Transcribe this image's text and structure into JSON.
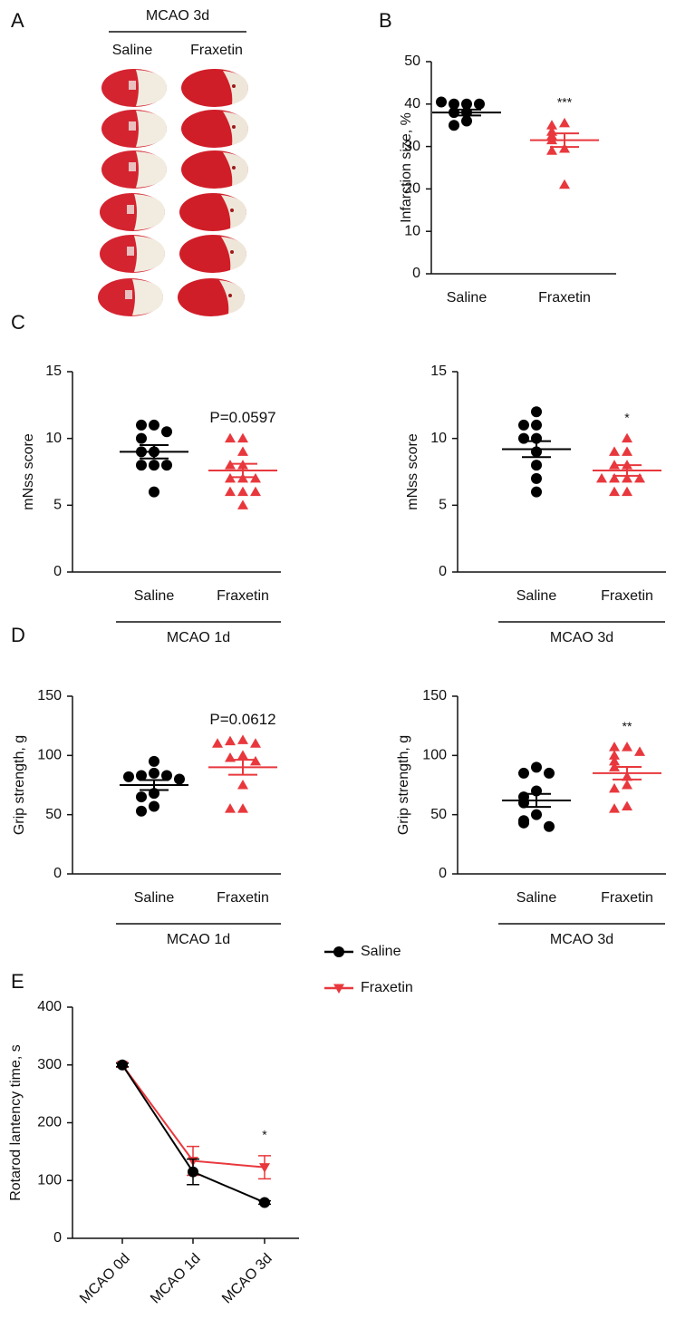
{
  "panel_a": {
    "label": "A",
    "title": "MCAO 3d",
    "columns": [
      "Saline",
      "Fraxetin"
    ]
  },
  "chart_data": [
    {
      "panel": "B",
      "type": "dot",
      "y_label": "Infarction size, %",
      "ylim": [
        0,
        50
      ],
      "yticks": [
        0,
        10,
        20,
        30,
        40,
        50
      ],
      "series": [
        {
          "name": "Saline",
          "color": "#000000",
          "marker": "circle",
          "values": [
            40,
            40,
            40,
            40.5,
            38,
            38,
            36,
            35
          ],
          "mean": 38,
          "sem": 0.7
        },
        {
          "name": "Fraxetin",
          "color": "#e8383d",
          "marker": "triangle",
          "values": [
            35.5,
            35,
            33.5,
            32.5,
            31.5,
            29.5,
            29,
            21
          ],
          "mean": 31.5,
          "sem": 1.6,
          "significance": "***"
        }
      ]
    },
    {
      "panel": "C",
      "type": "dot",
      "y_label": "mNss score",
      "group_label": "MCAO 1d",
      "ylim": [
        0,
        15
      ],
      "yticks": [
        0,
        5,
        10,
        15
      ],
      "series": [
        {
          "name": "Saline",
          "color": "#000000",
          "marker": "circle",
          "values": [
            11,
            11,
            10.5,
            10,
            9,
            9,
            8,
            8,
            8,
            6
          ],
          "mean": 9,
          "sem": 0.5
        },
        {
          "name": "Fraxetin",
          "color": "#e8383d",
          "marker": "triangle",
          "values": [
            10,
            10,
            9,
            8,
            8,
            7,
            7,
            7,
            6,
            6,
            6,
            5
          ],
          "mean": 7.6,
          "sem": 0.5,
          "significance": "P=0.0597"
        }
      ]
    },
    {
      "type": "dot",
      "y_label": "mNss score",
      "group_label": "MCAO 3d",
      "ylim": [
        0,
        15
      ],
      "yticks": [
        0,
        5,
        10,
        15
      ],
      "series": [
        {
          "name": "Saline",
          "color": "#000000",
          "marker": "circle",
          "values": [
            12,
            11,
            11,
            10,
            10,
            9,
            8,
            7,
            6
          ],
          "mean": 9.2,
          "sem": 0.6
        },
        {
          "name": "Fraxetin",
          "color": "#e8383d",
          "marker": "triangle",
          "values": [
            10,
            9,
            9,
            8,
            8,
            7,
            7,
            7,
            7,
            6,
            6
          ],
          "mean": 7.6,
          "sem": 0.4,
          "significance": "*"
        }
      ]
    },
    {
      "panel": "D",
      "type": "dot",
      "y_label": "Grip strength, g",
      "group_label": "MCAO 1d",
      "ylim": [
        0,
        150
      ],
      "yticks": [
        0,
        50,
        100,
        150
      ],
      "series": [
        {
          "name": "Saline",
          "color": "#000000",
          "marker": "circle",
          "values": [
            95,
            85,
            83,
            83,
            82,
            80,
            68,
            65,
            57,
            53
          ],
          "mean": 75,
          "sem": 4.2
        },
        {
          "name": "Fraxetin",
          "color": "#e8383d",
          "marker": "triangle",
          "values": [
            113,
            112,
            110,
            110,
            100,
            98,
            95,
            75,
            55,
            55
          ],
          "mean": 90,
          "sem": 6.3,
          "significance": "P=0.0612"
        }
      ]
    },
    {
      "type": "dot",
      "y_label": "Grip strength, g",
      "group_label": "MCAO 3d",
      "ylim": [
        0,
        150
      ],
      "yticks": [
        0,
        50,
        100,
        150
      ],
      "series": [
        {
          "name": "Saline",
          "color": "#000000",
          "marker": "circle",
          "values": [
            90,
            85,
            85,
            70,
            65,
            60,
            50,
            45,
            43,
            40
          ],
          "mean": 62,
          "sem": 5.5
        },
        {
          "name": "Fraxetin",
          "color": "#e8383d",
          "marker": "triangle",
          "values": [
            107,
            107,
            103,
            100,
            95,
            90,
            82,
            75,
            72,
            57,
            55
          ],
          "mean": 85,
          "sem": 5.3,
          "significance": "**"
        }
      ]
    },
    {
      "panel": "E",
      "type": "line",
      "y_label": "Rotarod lantency time, s",
      "categories": [
        "MCAO 0d",
        "MCAO 1d",
        "MCAO 3d"
      ],
      "ylim": [
        0,
        400
      ],
      "yticks": [
        0,
        100,
        200,
        300,
        400
      ],
      "series": [
        {
          "name": "Saline",
          "color": "#000000",
          "marker": "circle",
          "values": [
            300,
            115,
            62
          ],
          "errors": [
            3,
            22,
            3
          ]
        },
        {
          "name": "Fraxetin",
          "color": "#e8383d",
          "marker": "triangle-down",
          "values": [
            300,
            134,
            123
          ],
          "errors": [
            4,
            25,
            20
          ],
          "significance": "*"
        }
      ]
    }
  ]
}
